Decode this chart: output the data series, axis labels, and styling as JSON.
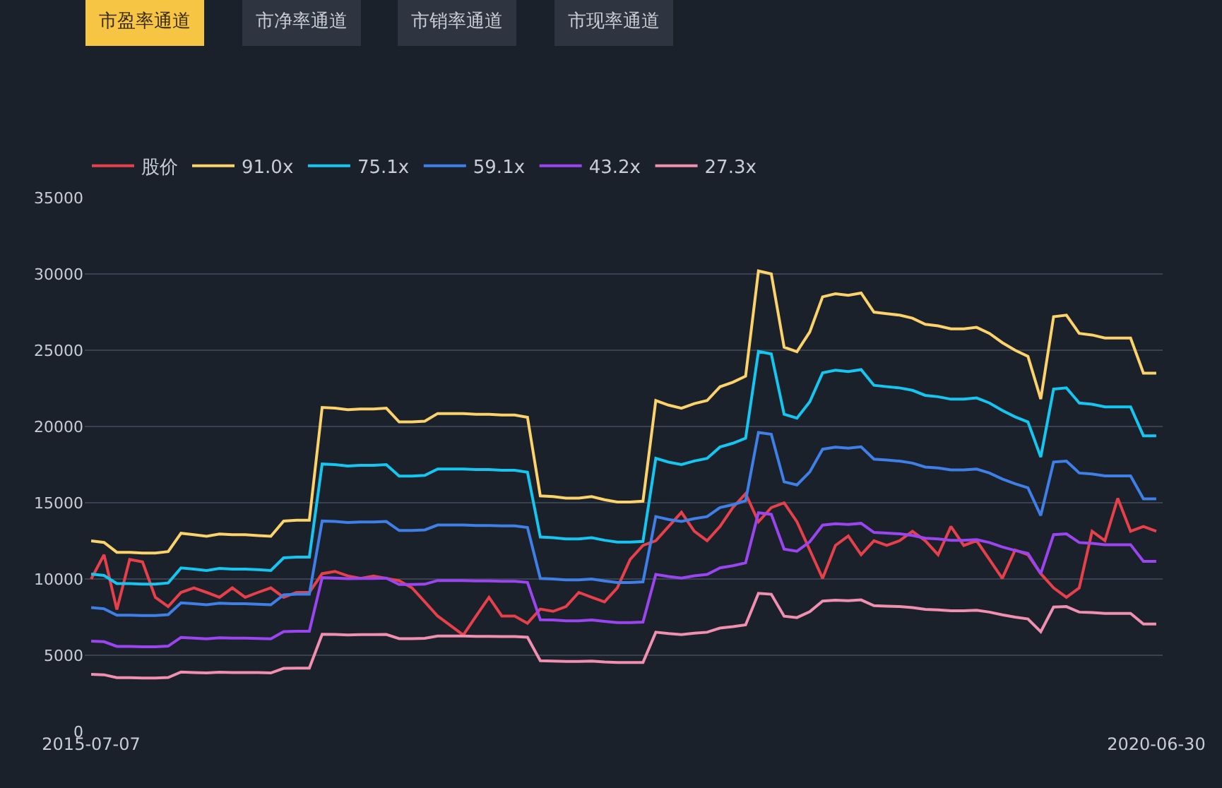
{
  "chart_data": {
    "type": "line",
    "annotations": [
      "市盈率通道",
      "市净率通道",
      "市销率通道",
      "市现率通道"
    ],
    "categories": [
      "2015-07-07",
      null,
      null,
      null,
      null,
      null,
      null,
      null,
      null,
      null,
      null,
      null,
      null,
      null,
      null,
      null,
      null,
      null,
      null,
      null,
      null,
      null,
      null,
      null,
      null,
      null,
      null,
      null,
      null,
      null,
      null,
      null,
      null,
      null,
      null,
      null,
      null,
      null,
      null,
      null,
      null,
      null,
      null,
      null,
      null,
      null,
      null,
      null,
      null,
      null,
      null,
      null,
      null,
      null,
      null,
      null,
      null,
      null,
      null,
      null,
      null,
      null,
      null,
      null,
      null,
      null,
      null,
      null,
      null,
      null,
      null,
      null,
      null,
      null,
      null,
      null,
      null,
      null,
      null,
      null,
      null,
      null,
      null,
      "2020-06-30"
    ],
    "ylim": [
      0,
      35000
    ],
    "yticks": [
      0,
      5000,
      10000,
      15000,
      20000,
      25000,
      30000,
      35000
    ],
    "grid": "y",
    "legend": "top left",
    "marker": "none",
    "line_style": "solid",
    "series": [
      {
        "name": "股价",
        "color": "#e8404a",
        "values": [
          10000,
          11590,
          8000,
          11280,
          11120,
          8800,
          8190,
          9120,
          9420,
          9120,
          8800,
          9420,
          8800,
          9120,
          9420,
          8800,
          9120,
          9120,
          10350,
          10500,
          10200,
          10040,
          10200,
          10040,
          9890,
          9420,
          8500,
          7570,
          6950,
          6330,
          7570,
          8800,
          7570,
          7570,
          7100,
          8030,
          7880,
          8190,
          9120,
          8800,
          8500,
          9420,
          11280,
          12200,
          12510,
          13440,
          14370,
          13130,
          12510,
          13440,
          14680,
          15600,
          13750,
          14680,
          14990,
          13750,
          11900,
          10040,
          12200,
          12820,
          11590,
          12510,
          12200,
          12510,
          13130,
          12510,
          11590,
          13440,
          12200,
          12510,
          11280,
          10040,
          11900,
          11590,
          10350,
          9420,
          8800,
          9420,
          13130,
          12510,
          15290,
          13130,
          13440,
          13130
        ]
      },
      {
        "name": "91.0x",
        "color": "#fcd36b",
        "values": [
          12500,
          12400,
          11750,
          11750,
          11700,
          11700,
          11800,
          13000,
          12900,
          12800,
          12950,
          12900,
          12900,
          12850,
          12800,
          13800,
          13850,
          13850,
          21250,
          21200,
          21100,
          21150,
          21150,
          21200,
          20300,
          20300,
          20350,
          20850,
          20850,
          20850,
          20800,
          20800,
          20750,
          20750,
          20600,
          15450,
          15400,
          15300,
          15300,
          15400,
          15200,
          15050,
          15050,
          15100,
          21700,
          21400,
          21200,
          21500,
          21700,
          22600,
          22900,
          23300,
          30200,
          30000,
          25200,
          24900,
          26200,
          28500,
          28700,
          28600,
          28750,
          27500,
          27400,
          27300,
          27100,
          26700,
          26600,
          26400,
          26400,
          26500,
          26100,
          25500,
          25000,
          24600,
          21800,
          27200,
          27300,
          26100,
          26000,
          25800,
          25800,
          25800,
          23500,
          23500
        ]
      },
      {
        "name": "75.1x",
        "color": "#15c6f0",
        "values": [
          10320,
          10230,
          9700,
          9700,
          9660,
          9660,
          9740,
          10730,
          10650,
          10560,
          10690,
          10650,
          10650,
          10610,
          10560,
          11390,
          11430,
          11430,
          17540,
          17500,
          17410,
          17450,
          17450,
          17500,
          16750,
          16750,
          16790,
          17210,
          17210,
          17210,
          17170,
          17170,
          17130,
          17130,
          17000,
          12750,
          12710,
          12630,
          12630,
          12710,
          12540,
          12420,
          12420,
          12460,
          17910,
          17660,
          17500,
          17740,
          17910,
          18650,
          18900,
          19230,
          24920,
          24760,
          20800,
          20550,
          21620,
          23520,
          23690,
          23600,
          23730,
          22700,
          22610,
          22530,
          22370,
          22040,
          21950,
          21790,
          21790,
          21870,
          21540,
          21050,
          20630,
          20300,
          17990,
          22450,
          22530,
          21540,
          21460,
          21290,
          21290,
          21290,
          19390,
          19390
        ]
      },
      {
        "name": "59.1x",
        "color": "#3f7fe8",
        "values": [
          8120,
          8050,
          7630,
          7630,
          7600,
          7600,
          7660,
          8440,
          8380,
          8310,
          8410,
          8380,
          8380,
          8350,
          8310,
          8960,
          9000,
          9000,
          13800,
          13770,
          13700,
          13740,
          13740,
          13770,
          13180,
          13180,
          13220,
          13540,
          13540,
          13540,
          13510,
          13510,
          13480,
          13480,
          13380,
          10030,
          10000,
          9940,
          9940,
          10000,
          9870,
          9770,
          9770,
          9810,
          14090,
          13900,
          13770,
          13960,
          14090,
          14680,
          14870,
          15130,
          19610,
          19490,
          16370,
          16170,
          17020,
          18510,
          18640,
          18580,
          18670,
          17860,
          17800,
          17730,
          17600,
          17340,
          17280,
          17150,
          17150,
          17210,
          16950,
          16560,
          16240,
          15980,
          14160,
          17670,
          17730,
          16950,
          16890,
          16760,
          16760,
          16760,
          15260,
          15260
        ]
      },
      {
        "name": "43.2x",
        "color": "#9b45f0",
        "values": [
          5930,
          5890,
          5580,
          5580,
          5550,
          5550,
          5600,
          6170,
          6120,
          6080,
          6150,
          6120,
          6120,
          6100,
          6080,
          6550,
          6570,
          6570,
          10090,
          10060,
          10020,
          10040,
          10040,
          10060,
          9640,
          9640,
          9660,
          9900,
          9900,
          9900,
          9870,
          9870,
          9850,
          9850,
          9780,
          7330,
          7310,
          7260,
          7260,
          7310,
          7220,
          7140,
          7140,
          7170,
          10300,
          10160,
          10060,
          10210,
          10300,
          10730,
          10870,
          11060,
          14340,
          14240,
          11960,
          11820,
          12440,
          13530,
          13620,
          13580,
          13650,
          13050,
          13010,
          12960,
          12860,
          12670,
          12630,
          12530,
          12530,
          12580,
          12390,
          12100,
          11870,
          11680,
          10350,
          12910,
          12960,
          12390,
          12340,
          12250,
          12250,
          12250,
          11160,
          11160
        ]
      },
      {
        "name": "27.3x",
        "color": "#f08fb0",
        "values": [
          3750,
          3720,
          3530,
          3530,
          3510,
          3510,
          3540,
          3900,
          3870,
          3840,
          3890,
          3870,
          3870,
          3860,
          3840,
          4140,
          4160,
          4160,
          6380,
          6360,
          6330,
          6350,
          6350,
          6360,
          6090,
          6090,
          6110,
          6260,
          6260,
          6260,
          6240,
          6240,
          6230,
          6230,
          6180,
          4640,
          4620,
          4590,
          4590,
          4620,
          4560,
          4520,
          4520,
          4530,
          6510,
          6420,
          6360,
          6450,
          6510,
          6780,
          6870,
          6990,
          9060,
          9000,
          7560,
          7470,
          7860,
          8550,
          8610,
          8580,
          8630,
          8250,
          8220,
          8190,
          8130,
          8010,
          7980,
          7920,
          7920,
          7950,
          7830,
          7650,
          7500,
          7380,
          6540,
          8160,
          8190,
          7830,
          7800,
          7740,
          7740,
          7740,
          7050,
          7050
        ]
      }
    ]
  }
}
